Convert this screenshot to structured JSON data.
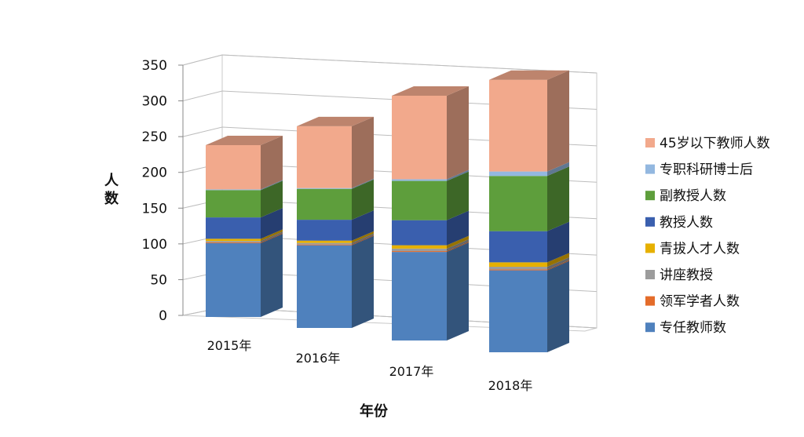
{
  "chart_data": {
    "type": "bar",
    "stacked": true,
    "three_d": true,
    "categories": [
      "2015年",
      "2016年",
      "2017年",
      "2018年"
    ],
    "xlabel": "年份",
    "ylabel": "人数",
    "ylim": [
      0,
      350
    ],
    "yticks": [
      0,
      50,
      100,
      150,
      200,
      250,
      300,
      350
    ],
    "grid": true,
    "legend_position": "right",
    "series": [
      {
        "name": "专任教师数",
        "color": "#4f81bd",
        "values": [
          100,
          107,
          106,
          92
        ]
      },
      {
        "name": "领军学者人数",
        "color": "#e46c2a",
        "values": [
          1,
          1,
          1,
          1
        ]
      },
      {
        "name": "讲座教授",
        "color": "#9c9c9c",
        "values": [
          2,
          2,
          3,
          3
        ]
      },
      {
        "name": "青拔人才人数",
        "color": "#e6b000",
        "values": [
          3,
          3,
          4,
          5
        ]
      },
      {
        "name": "教授人数",
        "color": "#3a5fae",
        "values": [
          29,
          27,
          30,
          35
        ]
      },
      {
        "name": "副教授人数",
        "color": "#5e9e3c",
        "values": [
          37,
          40,
          47,
          62
        ]
      },
      {
        "name": "专职科研博士后",
        "color": "#93b8e0",
        "values": [
          1,
          1,
          2,
          5
        ]
      },
      {
        "name": "45岁以下教师人数",
        "color": "#f2a98c",
        "values": [
          60,
          80,
          100,
          103
        ]
      }
    ]
  }
}
